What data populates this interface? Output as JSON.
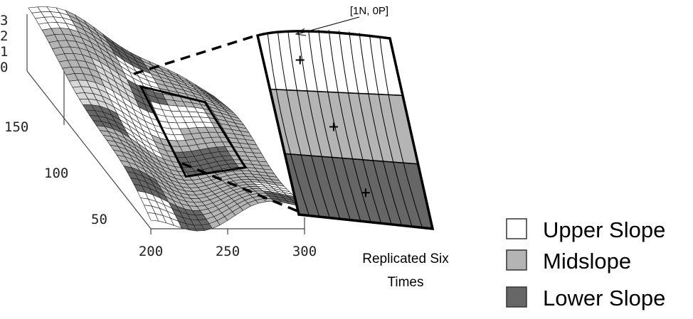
{
  "z_axis": {
    "ticks": [
      "3",
      "2",
      "1",
      "0"
    ]
  },
  "y_axis": {
    "ticks": [
      "150",
      "100",
      "50"
    ]
  },
  "x_axis": {
    "ticks": [
      "200",
      "250",
      "300"
    ]
  },
  "callout": {
    "label": "[1N, 0P]"
  },
  "caption": {
    "line1": "Replicated Six",
    "line2": "Times"
  },
  "zones": [
    {
      "name": "Upper Slope",
      "color": "#ffffff"
    },
    {
      "name": "Midslope",
      "color": "#b4b4b4"
    },
    {
      "name": "Lower Slope",
      "color": "#666666"
    }
  ],
  "legend": [
    {
      "label": "Upper Slope",
      "color": "#ffffff"
    },
    {
      "label": "Midslope",
      "color": "#b4b4b4"
    },
    {
      "label": "Lower Slope",
      "color": "#666666"
    }
  ]
}
